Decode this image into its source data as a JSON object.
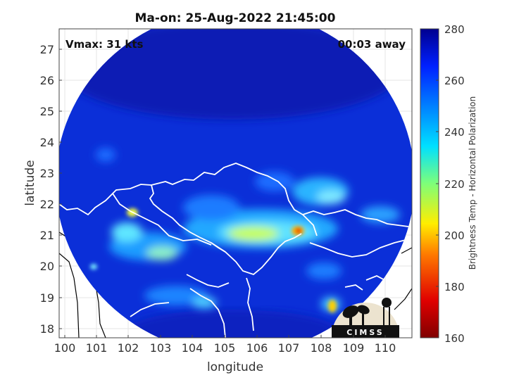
{
  "title": "Ma-on: 25-Aug-2022 21:45:00",
  "annotations": {
    "vmax": "Vmax: 31 kts",
    "away": "00:03 away"
  },
  "axes": {
    "xlabel": "longitude",
    "ylabel": "latitude",
    "x_ticks": [
      "100",
      "101",
      "102",
      "103",
      "104",
      "105",
      "106",
      "107",
      "108",
      "109",
      "110"
    ],
    "y_ticks": [
      "18",
      "19",
      "20",
      "21",
      "22",
      "23",
      "24",
      "25",
      "26",
      "27"
    ],
    "xlim": [
      99.8,
      110.7
    ],
    "ylim": [
      17.7,
      27.7
    ]
  },
  "colorbar": {
    "label": "Brightness Temp - Horizontal Polarization",
    "ticks": [
      "160",
      "180",
      "200",
      "220",
      "240",
      "260",
      "280"
    ],
    "range": [
      160,
      280
    ],
    "colormap": "jet"
  },
  "logo": {
    "text": "CIMSS"
  },
  "colors": {
    "background_field": "#0a2bd8",
    "coast": "#ffffff",
    "land_border": "#000000"
  }
}
